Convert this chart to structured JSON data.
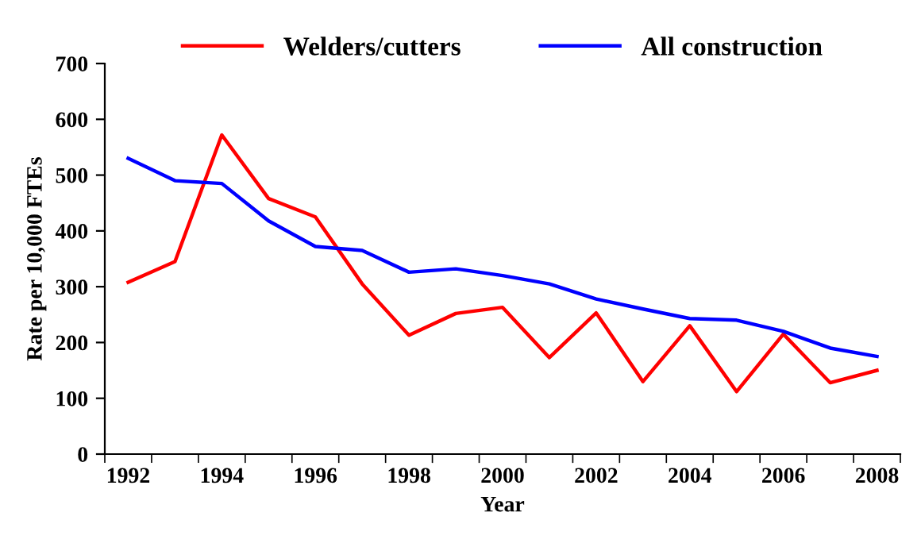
{
  "chart_data": {
    "type": "line",
    "xlabel": "Year",
    "ylabel": "Rate per 10,000 FTEs",
    "categories": [
      "1992",
      null,
      "1994",
      null,
      "1996",
      null,
      "1998",
      null,
      "2000",
      null,
      "2002",
      null,
      "2004",
      null,
      "2006",
      null,
      "2008"
    ],
    "series": [
      {
        "name": "Welders/cutters",
        "color": "#ff0000",
        "values": [
          308,
          345,
          572,
          458,
          425,
          305,
          213,
          252,
          263,
          173,
          253,
          130,
          230,
          112,
          215,
          128,
          150
        ]
      },
      {
        "name": "All construction",
        "color": "#0000ff",
        "values": [
          530,
          490,
          485,
          418,
          372,
          365,
          326,
          332,
          320,
          305,
          278,
          260,
          243,
          240,
          220,
          190,
          175
        ]
      }
    ],
    "ylim": [
      0,
      700
    ],
    "yticks": [
      0,
      100,
      200,
      300,
      400,
      500,
      600,
      700
    ],
    "grid": false,
    "legend": "top",
    "marker": "none",
    "line_style": "solid"
  }
}
